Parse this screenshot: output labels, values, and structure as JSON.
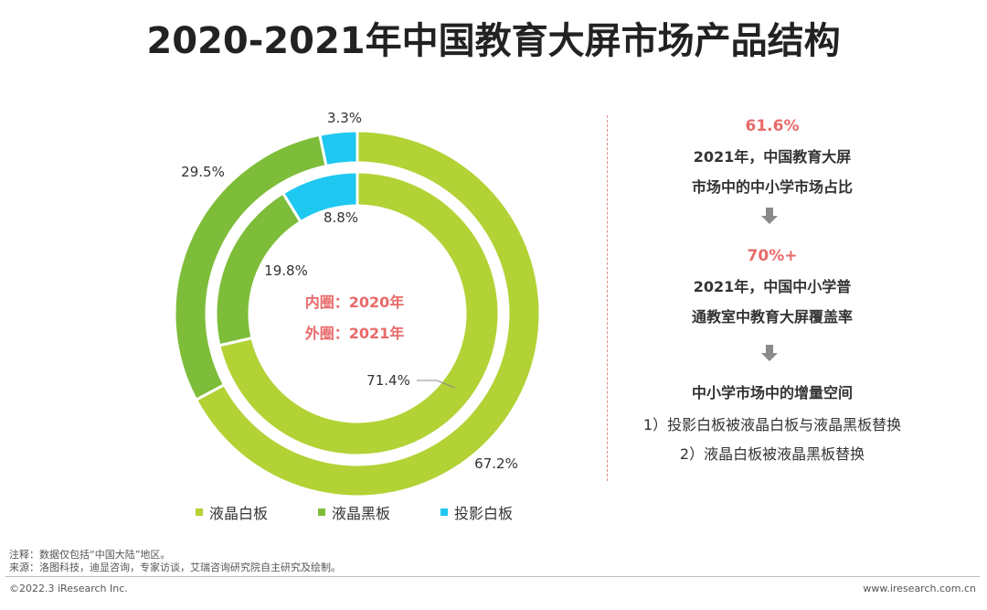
{
  "title": "2020-2021年中国教育大屏市场产品结构",
  "chart_data": {
    "type": "donut",
    "title": "2020-2021年中国教育大屏市场产品结构",
    "center_labels": [
      "内圈：2020年",
      "外圈：2021年"
    ],
    "categories": [
      "液晶白板",
      "液晶黑板",
      "投影白板"
    ],
    "colors": [
      "#b2d235",
      "#7dbd3a",
      "#1ec8f0"
    ],
    "series": [
      {
        "name": "2020年",
        "ring": "inner",
        "values": [
          71.4,
          19.8,
          8.8
        ],
        "labels": [
          "71.4%",
          "19.8%",
          "8.8%"
        ]
      },
      {
        "name": "2021年",
        "ring": "outer",
        "values": [
          67.2,
          29.5,
          3.3
        ],
        "labels": [
          "67.2%",
          "29.5%",
          "3.3%"
        ]
      }
    ]
  },
  "right_panel": {
    "stat1_value": "61.6%",
    "stat1_line1": "2021年，中国教育大屏",
    "stat1_line2": "市场中的中小学市场占比",
    "stat2_value": "70%+",
    "stat2_line1": "2021年，中国中小学普",
    "stat2_line2": "通教室中教育大屏覆盖率",
    "heading": "中小学市场中的增量空间",
    "point1": "1）投影白板被液晶白板与液晶黑板替换",
    "point2": "2）液晶白板被液晶黑板替换",
    "arrow_color": "#8a8a8a"
  },
  "legend": {
    "items": [
      {
        "label": "液晶白板",
        "color": "#b2d235"
      },
      {
        "label": "液晶黑板",
        "color": "#7dbd3a"
      },
      {
        "label": "投影白板",
        "color": "#1ec8f0"
      }
    ]
  },
  "footer": {
    "note": "注释：数据仅包括“中国大陆”地区。",
    "source": "来源：洛图科技，迪显咨询，专家访谈，艾瑞咨询研究院自主研究及绘制。",
    "copyright": "©2022.3 iResearch Inc.",
    "website": "www.iresearch.com.cn"
  }
}
